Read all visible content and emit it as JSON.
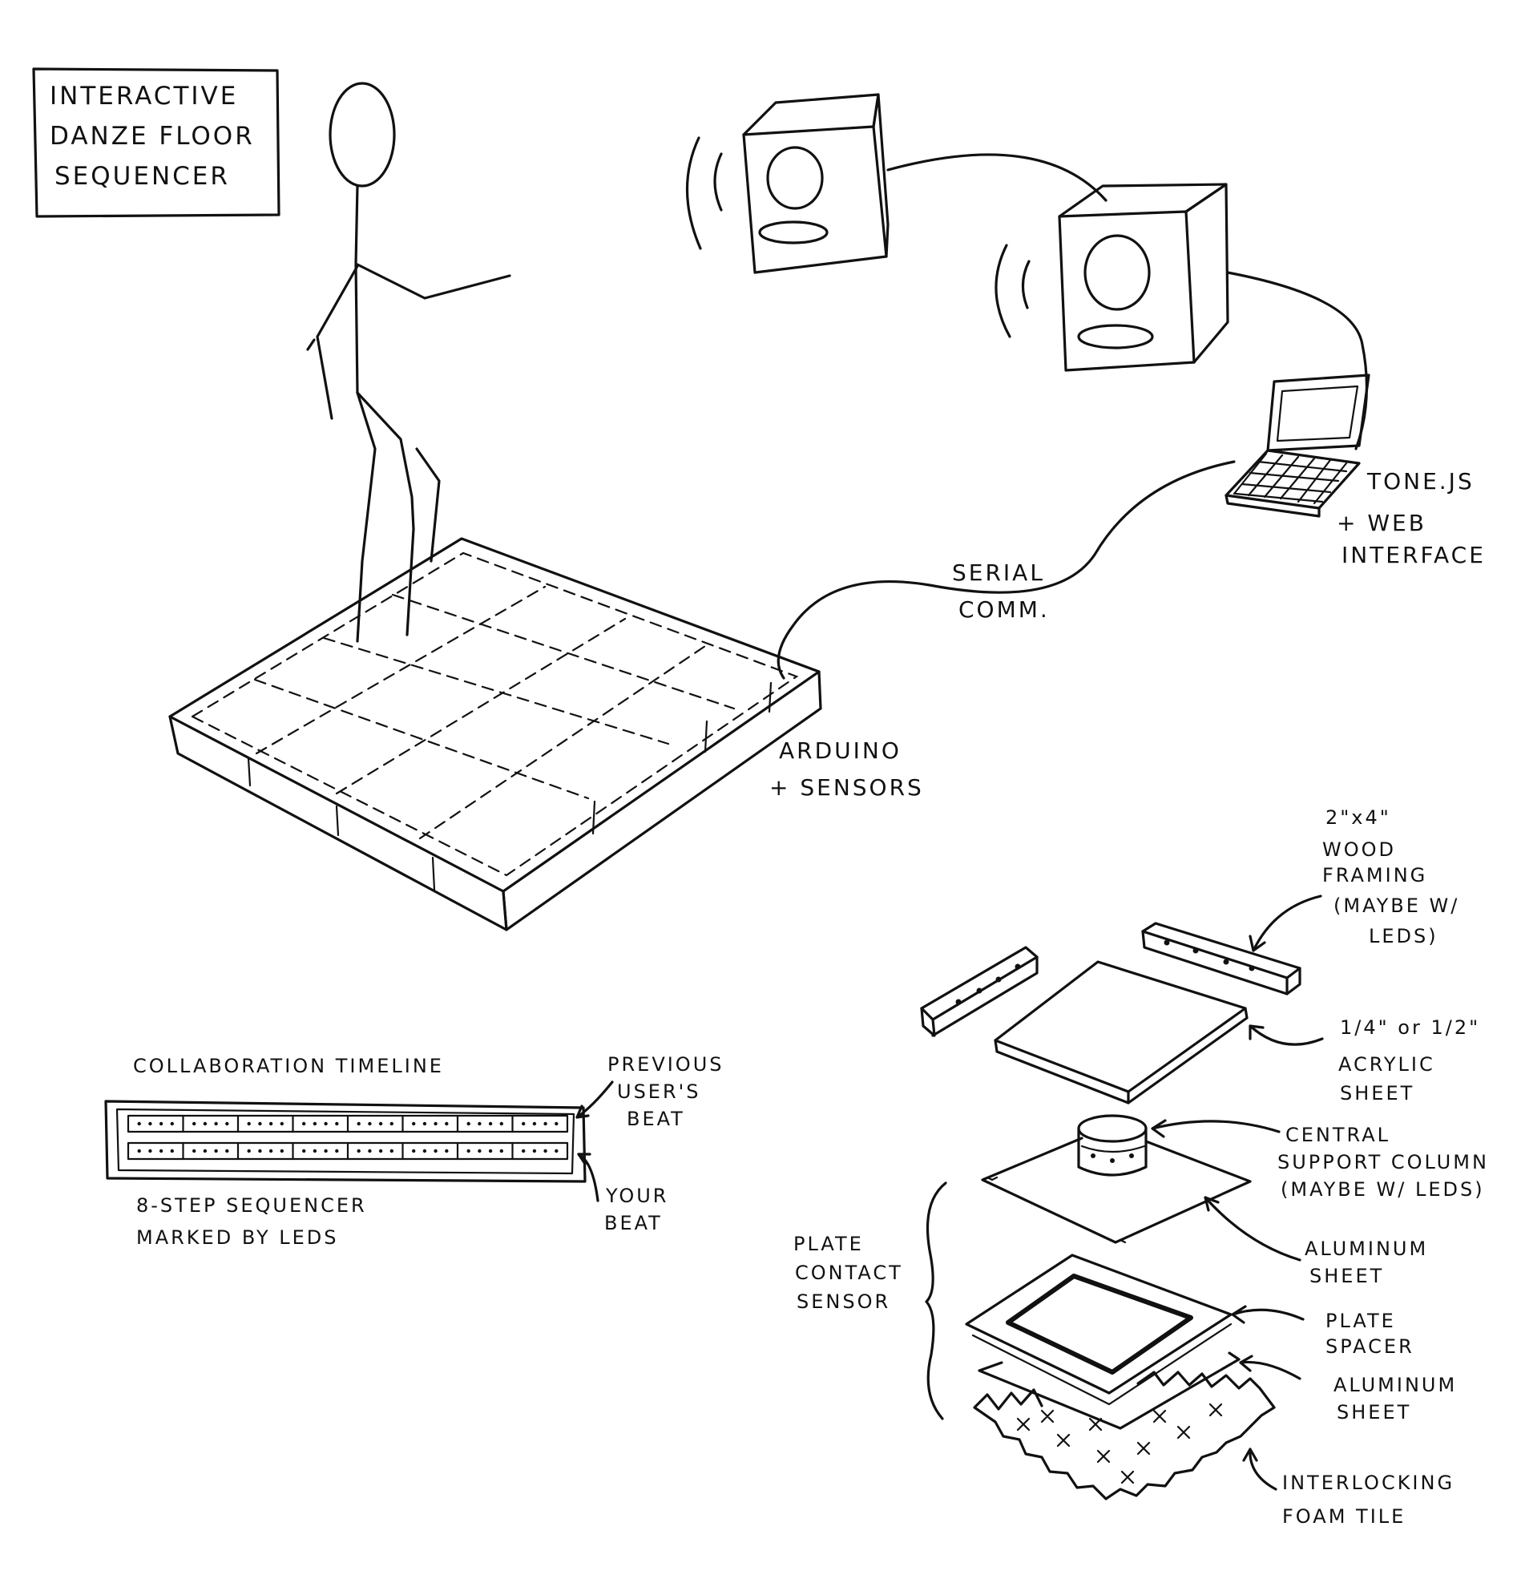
{
  "title_box": {
    "lines": [
      "INTERACTIVE",
      "DANZE FLOOR",
      "SEQUENCER"
    ]
  },
  "connections": {
    "serial": [
      "SERIAL",
      "COMM."
    ]
  },
  "labels": {
    "computer": [
      "TONE.JS",
      "+ WEB",
      "INTERFACE"
    ],
    "floor": [
      "ARDUINO",
      "+ SENSORS"
    ]
  },
  "timeline": {
    "title": "COLLABORATION TIMELINE",
    "caption": [
      "8-STEP SEQUENCER",
      "MARKED BY LEDS"
    ],
    "rows": [
      {
        "label": [
          "PREVIOUS",
          "USER'S",
          "BEAT"
        ],
        "steps": 8
      },
      {
        "label": [
          "YOUR",
          "BEAT"
        ],
        "steps": 8
      }
    ]
  },
  "exploded_view": {
    "group_label": [
      "PLATE",
      "CONTACT",
      "SENSOR"
    ],
    "layers": [
      {
        "id": "framing",
        "label": [
          "2\"x4\"",
          "WOOD",
          "FRAMING",
          "(MAYBE W/",
          "LEDS)"
        ]
      },
      {
        "id": "acrylic",
        "label": [
          "1/4\" or 1/2\"",
          "ACRYLIC",
          "SHEET"
        ]
      },
      {
        "id": "column",
        "label": [
          "CENTRAL",
          "SUPPORT COLUMN",
          "(MAYBE W/ LEDS)"
        ]
      },
      {
        "id": "aluminum-top",
        "label": [
          "ALUMINUM",
          "SHEET"
        ]
      },
      {
        "id": "spacer",
        "label": [
          "PLATE",
          "SPACER"
        ]
      },
      {
        "id": "aluminum-bottom",
        "label": [
          "ALUMINUM",
          "SHEET"
        ]
      },
      {
        "id": "foam",
        "label": [
          "INTERLOCKING",
          "FOAM TILE"
        ]
      }
    ]
  },
  "colors": {
    "ink": "#111111",
    "paper": "#ffffff"
  }
}
